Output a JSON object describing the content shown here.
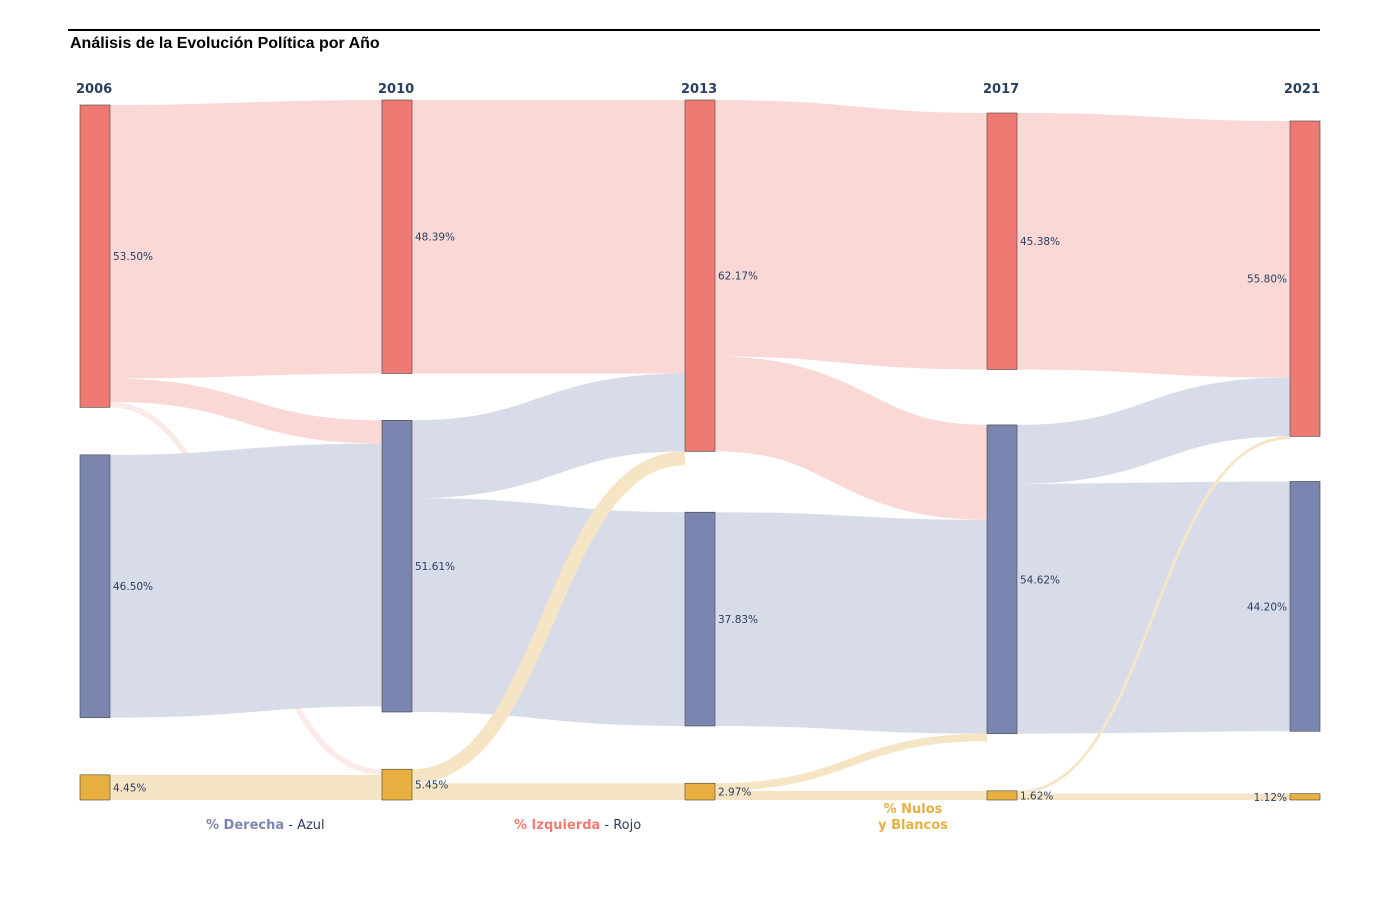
{
  "title": "Análisis de la Evolución Política por Año",
  "colors": {
    "izquierda": "#ef7a73",
    "derecha": "#7b86b0",
    "nulos": "#e7b040",
    "izquierda_flow": "#f9d8d6",
    "derecha_flow": "#d8dce8",
    "nulos_flow": "#f6e5c4",
    "text": "#2a3f5f"
  },
  "legend": {
    "derecha": {
      "label": "% Derecha",
      "suffix": " - Azul",
      "color": "#7b86b0"
    },
    "izquierda": {
      "label": "% Izquierda",
      "suffix": " - Rojo",
      "color": "#ef7a73"
    },
    "nulos": {
      "line1": "% Nulos",
      "line2": "y Blancos",
      "color": "#e7b040"
    }
  },
  "chart_data": {
    "type": "sankey",
    "years": [
      "2006",
      "2010",
      "2013",
      "2017",
      "2021"
    ],
    "nodes": [
      {
        "year": "2006",
        "group": "izquierda",
        "value": 53.5,
        "label": "53.50%"
      },
      {
        "year": "2006",
        "group": "derecha",
        "value": 46.5,
        "label": "46.50%"
      },
      {
        "year": "2006",
        "group": "nulos",
        "value": 4.45,
        "label": "4.45%"
      },
      {
        "year": "2010",
        "group": "izquierda",
        "value": 48.39,
        "label": "48.39%"
      },
      {
        "year": "2010",
        "group": "derecha",
        "value": 51.61,
        "label": "51.61%"
      },
      {
        "year": "2010",
        "group": "nulos",
        "value": 5.45,
        "label": "5.45%"
      },
      {
        "year": "2013",
        "group": "izquierda",
        "value": 62.17,
        "label": "62.17%"
      },
      {
        "year": "2013",
        "group": "derecha",
        "value": 37.83,
        "label": "37.83%"
      },
      {
        "year": "2013",
        "group": "nulos",
        "value": 2.97,
        "label": "2.97%"
      },
      {
        "year": "2017",
        "group": "izquierda",
        "value": 45.38,
        "label": "45.38%"
      },
      {
        "year": "2017",
        "group": "derecha",
        "value": 54.62,
        "label": "54.62%"
      },
      {
        "year": "2017",
        "group": "nulos",
        "value": 1.62,
        "label": "1.62%"
      },
      {
        "year": "2021",
        "group": "izquierda",
        "value": 55.8,
        "label": "55.80%"
      },
      {
        "year": "2021",
        "group": "derecha",
        "value": 44.2,
        "label": "44.20%"
      },
      {
        "year": "2021",
        "group": "nulos",
        "value": 1.12,
        "label": "1.12%"
      }
    ],
    "links": [
      {
        "from": "2006",
        "to": "2010",
        "source": "izquierda",
        "target": "izquierda",
        "value": 48.39
      },
      {
        "from": "2006",
        "to": "2010",
        "source": "izquierda",
        "target": "derecha",
        "value": 4.11
      },
      {
        "from": "2006",
        "to": "2010",
        "source": "izquierda",
        "target": "nulos",
        "value": 1.0
      },
      {
        "from": "2006",
        "to": "2010",
        "source": "derecha",
        "target": "derecha",
        "value": 46.5
      },
      {
        "from": "2006",
        "to": "2010",
        "source": "nulos",
        "target": "nulos",
        "value": 4.45
      },
      {
        "from": "2010",
        "to": "2013",
        "source": "izquierda",
        "target": "izquierda",
        "value": 48.39
      },
      {
        "from": "2010",
        "to": "2013",
        "source": "derecha",
        "target": "izquierda",
        "value": 13.78
      },
      {
        "from": "2010",
        "to": "2013",
        "source": "derecha",
        "target": "derecha",
        "value": 37.83
      },
      {
        "from": "2010",
        "to": "2013",
        "source": "nulos",
        "target": "izquierda",
        "value": 2.48
      },
      {
        "from": "2010",
        "to": "2013",
        "source": "nulos",
        "target": "nulos",
        "value": 2.97
      },
      {
        "from": "2013",
        "to": "2017",
        "source": "izquierda",
        "target": "izquierda",
        "value": 45.38
      },
      {
        "from": "2013",
        "to": "2017",
        "source": "izquierda",
        "target": "derecha",
        "value": 16.79
      },
      {
        "from": "2013",
        "to": "2017",
        "source": "derecha",
        "target": "derecha",
        "value": 37.83
      },
      {
        "from": "2013",
        "to": "2017",
        "source": "nulos",
        "target": "derecha",
        "value": 1.35
      },
      {
        "from": "2013",
        "to": "2017",
        "source": "nulos",
        "target": "nulos",
        "value": 1.62
      },
      {
        "from": "2017",
        "to": "2021",
        "source": "izquierda",
        "target": "izquierda",
        "value": 45.38
      },
      {
        "from": "2017",
        "to": "2021",
        "source": "derecha",
        "target": "izquierda",
        "value": 10.42
      },
      {
        "from": "2017",
        "to": "2021",
        "source": "derecha",
        "target": "derecha",
        "value": 44.2
      },
      {
        "from": "2017",
        "to": "2021",
        "source": "nulos",
        "target": "izquierda",
        "value": 0.5
      },
      {
        "from": "2017",
        "to": "2021",
        "source": "nulos",
        "target": "nulos",
        "value": 1.12
      }
    ]
  }
}
